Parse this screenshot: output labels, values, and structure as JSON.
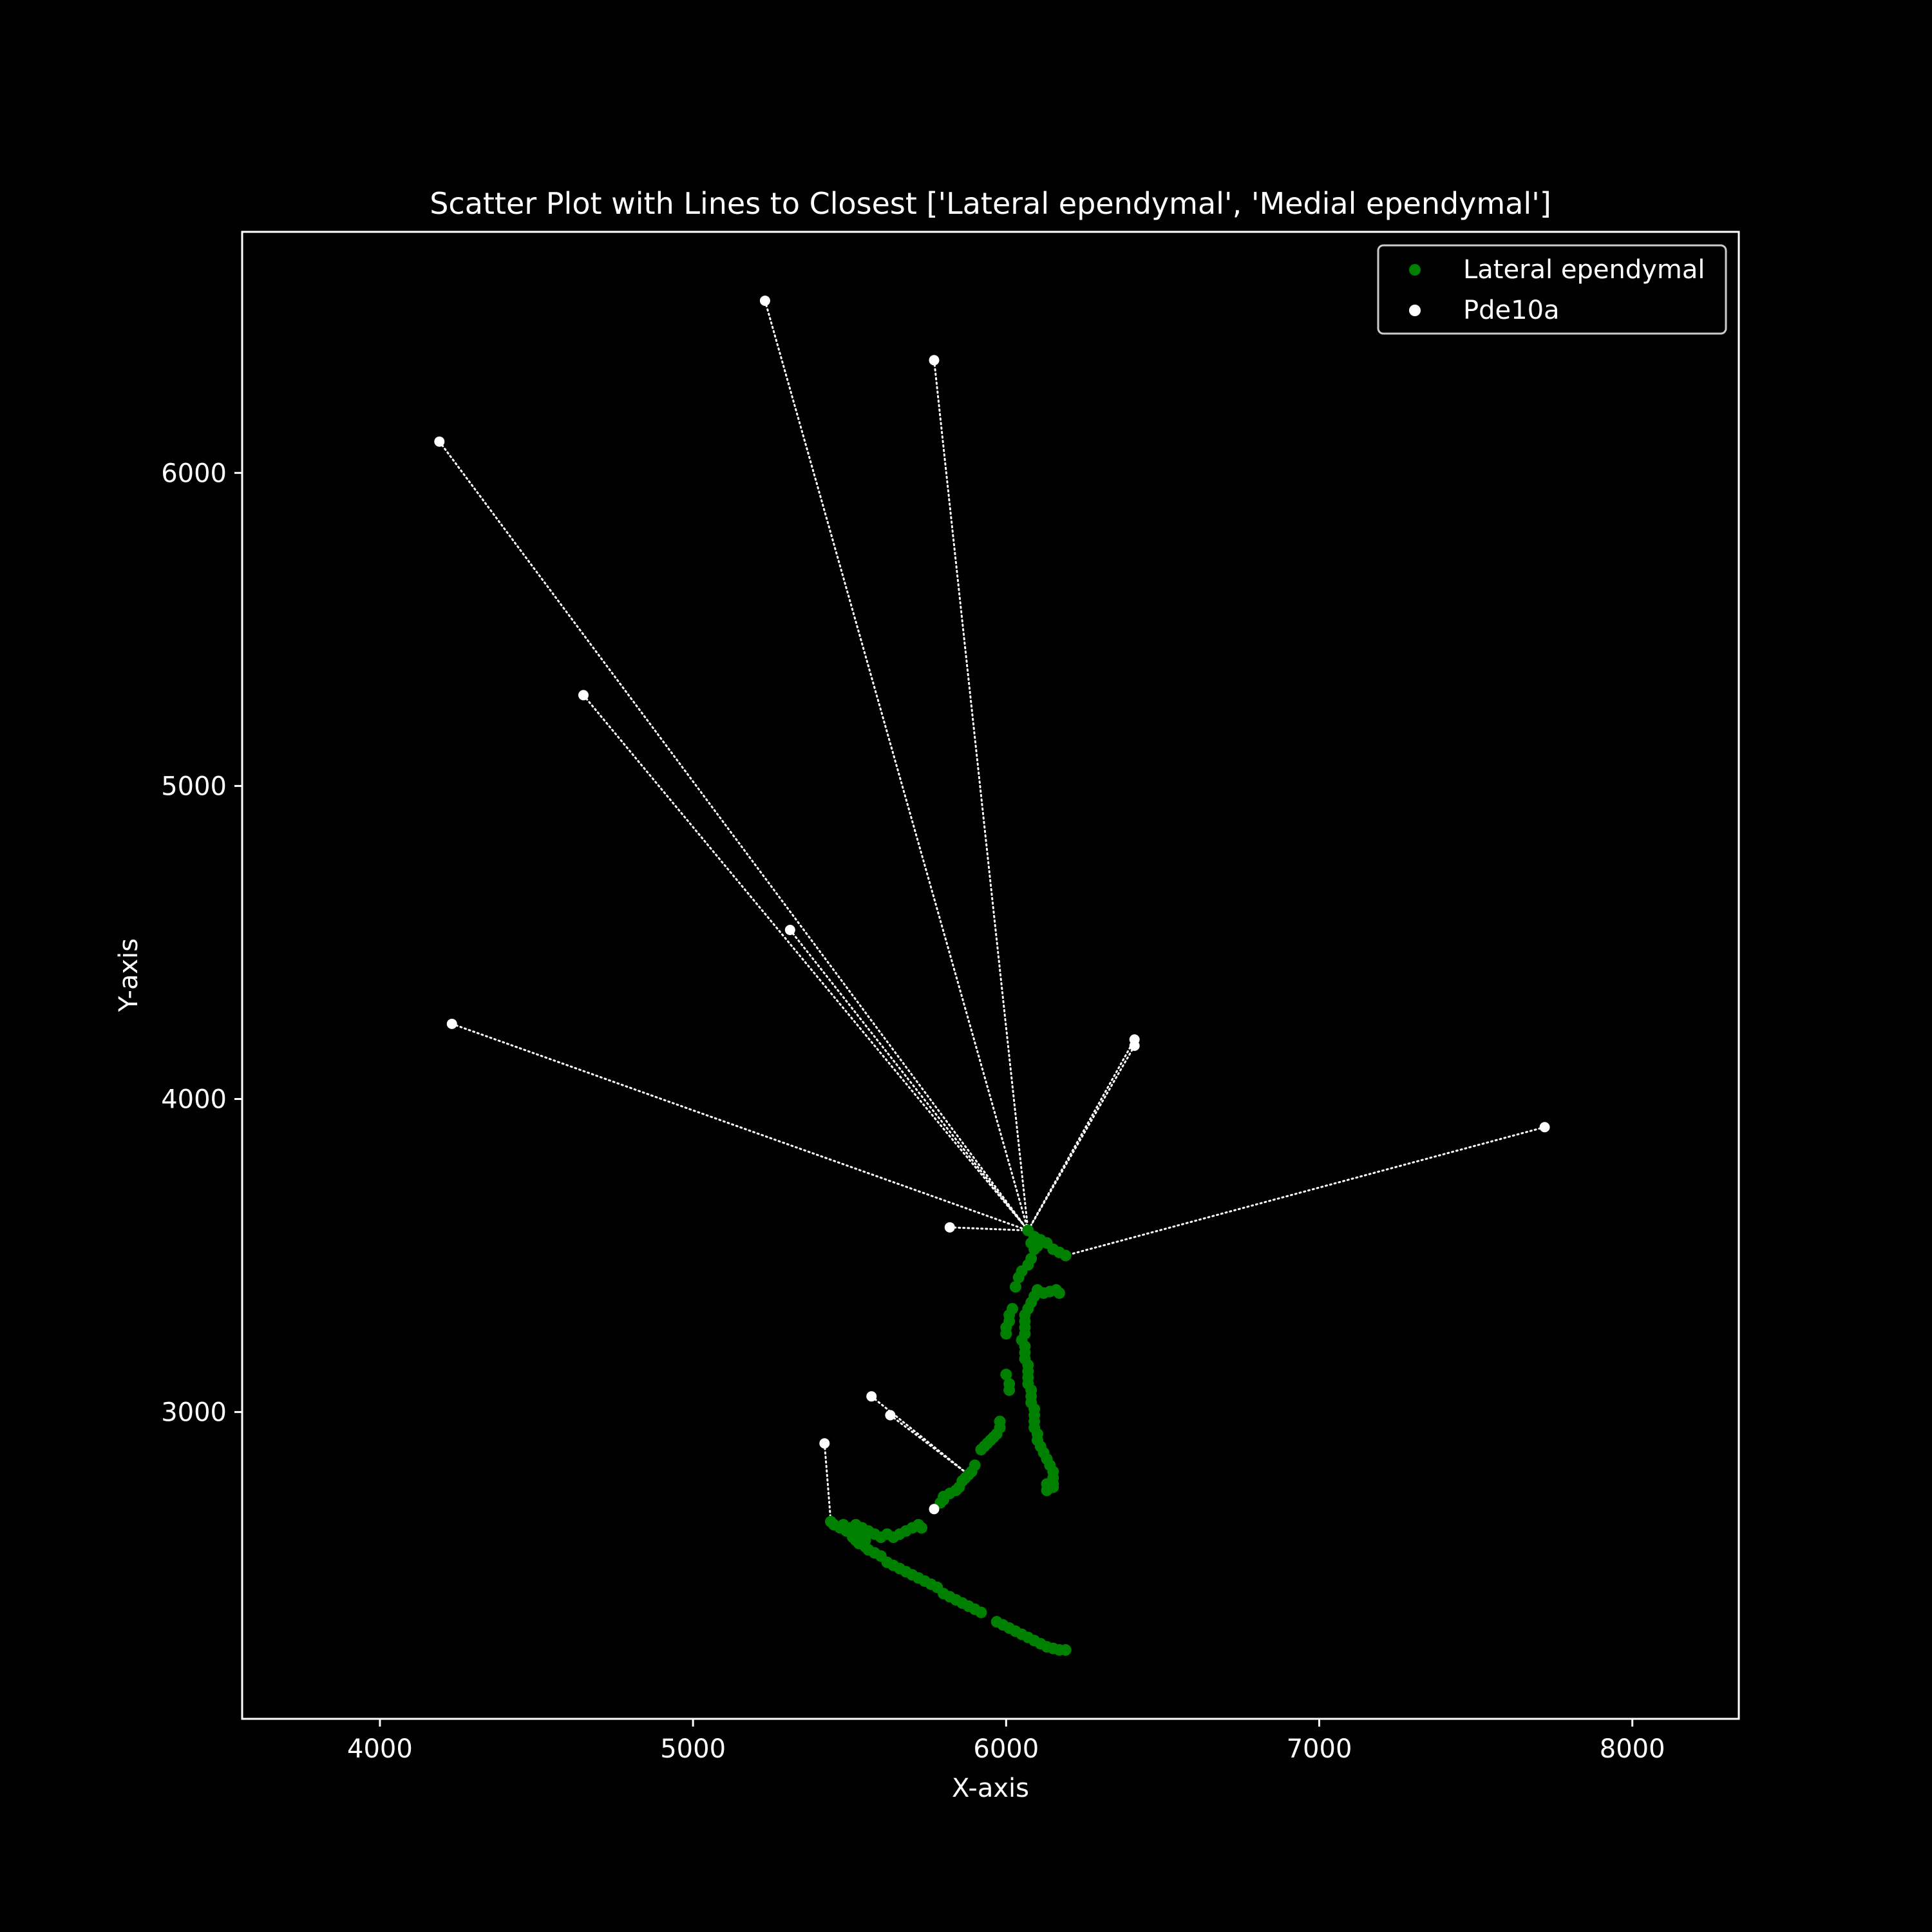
{
  "chart_data": {
    "type": "scatter",
    "title": "Scatter Plot with Lines to Closest ['Lateral ependymal', 'Medial ependymal']",
    "xlabel": "X-axis",
    "ylabel": "Y-axis",
    "xlim": [
      3560,
      8340
    ],
    "ylim": [
      2020,
      6770
    ],
    "xticks": [
      4000,
      5000,
      6000,
      7000,
      8000
    ],
    "yticks": [
      3000,
      4000,
      5000,
      6000
    ],
    "grid": false,
    "legend_position": "top-right",
    "colors": {
      "background": "#000000",
      "foreground": "#ffffff",
      "lateral_ependymal": "#008000",
      "pde10a": "#ffffff"
    },
    "series": [
      {
        "name": "Lateral ependymal",
        "color": "#008000",
        "points": [
          [
            6070,
            3580
          ],
          [
            6090,
            3560
          ],
          [
            6110,
            3550
          ],
          [
            6080,
            3540
          ],
          [
            6100,
            3530
          ],
          [
            6130,
            3540
          ],
          [
            6150,
            3520
          ],
          [
            6170,
            3510
          ],
          [
            6190,
            3500
          ],
          [
            6090,
            3520
          ],
          [
            6080,
            3490
          ],
          [
            6070,
            3470
          ],
          [
            6050,
            3450
          ],
          [
            6040,
            3430
          ],
          [
            6030,
            3400
          ],
          [
            6100,
            3390
          ],
          [
            6120,
            3380
          ],
          [
            6140,
            3385
          ],
          [
            6160,
            3390
          ],
          [
            6170,
            3380
          ],
          [
            6090,
            3370
          ],
          [
            6080,
            3350
          ],
          [
            6070,
            3330
          ],
          [
            6020,
            3330
          ],
          [
            6010,
            3310
          ],
          [
            6010,
            3290
          ],
          [
            6000,
            3270
          ],
          [
            6000,
            3250
          ],
          [
            6060,
            3310
          ],
          [
            6060,
            3290
          ],
          [
            6060,
            3270
          ],
          [
            6060,
            3250
          ],
          [
            6050,
            3230
          ],
          [
            6060,
            3210
          ],
          [
            6060,
            3190
          ],
          [
            6060,
            3170
          ],
          [
            6070,
            3150
          ],
          [
            6070,
            3130
          ],
          [
            6070,
            3110
          ],
          [
            6000,
            3120
          ],
          [
            6010,
            3090
          ],
          [
            6010,
            3070
          ],
          [
            6070,
            3090
          ],
          [
            6080,
            3070
          ],
          [
            6080,
            3050
          ],
          [
            6080,
            3030
          ],
          [
            6090,
            3010
          ],
          [
            6090,
            2990
          ],
          [
            6090,
            2970
          ],
          [
            6090,
            2950
          ],
          [
            6100,
            2930
          ],
          [
            6100,
            2910
          ],
          [
            6110,
            2890
          ],
          [
            6120,
            2870
          ],
          [
            6130,
            2850
          ],
          [
            6140,
            2830
          ],
          [
            6150,
            2810
          ],
          [
            6150,
            2790
          ],
          [
            6150,
            2770
          ],
          [
            6140,
            2760
          ],
          [
            6130,
            2770
          ],
          [
            6130,
            2750
          ],
          [
            6150,
            2760
          ],
          [
            5980,
            2970
          ],
          [
            5980,
            2950
          ],
          [
            5970,
            2930
          ],
          [
            5960,
            2920
          ],
          [
            5950,
            2910
          ],
          [
            5940,
            2900
          ],
          [
            5930,
            2890
          ],
          [
            5920,
            2880
          ],
          [
            5900,
            2830
          ],
          [
            5890,
            2810
          ],
          [
            5880,
            2800
          ],
          [
            5870,
            2790
          ],
          [
            5860,
            2780
          ],
          [
            5850,
            2760
          ],
          [
            5840,
            2750
          ],
          [
            5820,
            2740
          ],
          [
            5800,
            2720
          ],
          [
            5790,
            2710
          ],
          [
            5800,
            2730
          ],
          [
            5440,
            2650
          ],
          [
            5450,
            2640
          ],
          [
            5470,
            2630
          ],
          [
            5480,
            2640
          ],
          [
            5490,
            2620
          ],
          [
            5500,
            2630
          ],
          [
            5520,
            2640
          ],
          [
            5530,
            2620
          ],
          [
            5540,
            2630
          ],
          [
            5550,
            2610
          ],
          [
            5560,
            2620
          ],
          [
            5580,
            2610
          ],
          [
            5600,
            2600
          ],
          [
            5620,
            2610
          ],
          [
            5640,
            2600
          ],
          [
            5660,
            2610
          ],
          [
            5680,
            2620
          ],
          [
            5700,
            2630
          ],
          [
            5720,
            2640
          ],
          [
            5730,
            2630
          ],
          [
            5510,
            2600
          ],
          [
            5520,
            2590
          ],
          [
            5530,
            2580
          ],
          [
            5550,
            2570
          ],
          [
            5560,
            2560
          ],
          [
            5580,
            2550
          ],
          [
            5600,
            2540
          ],
          [
            5620,
            2520
          ],
          [
            5640,
            2510
          ],
          [
            5660,
            2500
          ],
          [
            5680,
            2490
          ],
          [
            5700,
            2480
          ],
          [
            5720,
            2470
          ],
          [
            5740,
            2460
          ],
          [
            5760,
            2450
          ],
          [
            5780,
            2440
          ],
          [
            5800,
            2420
          ],
          [
            5820,
            2410
          ],
          [
            5840,
            2400
          ],
          [
            5860,
            2390
          ],
          [
            5880,
            2380
          ],
          [
            5900,
            2370
          ],
          [
            5920,
            2360
          ],
          [
            5970,
            2330
          ],
          [
            5990,
            2320
          ],
          [
            6010,
            2310
          ],
          [
            6030,
            2300
          ],
          [
            6050,
            2290
          ],
          [
            6070,
            2280
          ],
          [
            6090,
            2270
          ],
          [
            6110,
            2260
          ],
          [
            6130,
            2250
          ],
          [
            6150,
            2245
          ],
          [
            6170,
            2240
          ],
          [
            6190,
            2240
          ],
          [
            5530,
            2610
          ],
          [
            5550,
            2590
          ],
          [
            5510,
            2620
          ]
        ]
      },
      {
        "name": "Pde10a",
        "color": "#ffffff",
        "points": [
          [
            5230,
            6550
          ],
          [
            5770,
            6360
          ],
          [
            4190,
            6100
          ],
          [
            4650,
            5290
          ],
          [
            5310,
            4540
          ],
          [
            4230,
            4240
          ],
          [
            6410,
            4190
          ],
          [
            6410,
            4170
          ],
          [
            7720,
            3910
          ],
          [
            5820,
            3590
          ],
          [
            5570,
            3050
          ],
          [
            5630,
            2990
          ],
          [
            5420,
            2900
          ],
          [
            5770,
            2690
          ]
        ]
      }
    ],
    "connections": [
      {
        "from": [
          5230,
          6550
        ],
        "to": [
          6070,
          3580
        ]
      },
      {
        "from": [
          5770,
          6360
        ],
        "to": [
          6070,
          3580
        ]
      },
      {
        "from": [
          4190,
          6100
        ],
        "to": [
          6070,
          3580
        ]
      },
      {
        "from": [
          4650,
          5290
        ],
        "to": [
          6070,
          3580
        ]
      },
      {
        "from": [
          5310,
          4540
        ],
        "to": [
          6070,
          3580
        ]
      },
      {
        "from": [
          4230,
          4240
        ],
        "to": [
          6070,
          3580
        ]
      },
      {
        "from": [
          6410,
          4190
        ],
        "to": [
          6070,
          3580
        ]
      },
      {
        "from": [
          6410,
          4170
        ],
        "to": [
          6070,
          3580
        ]
      },
      {
        "from": [
          7720,
          3910
        ],
        "to": [
          6190,
          3500
        ]
      },
      {
        "from": [
          5820,
          3590
        ],
        "to": [
          6070,
          3580
        ]
      },
      {
        "from": [
          5570,
          3050
        ],
        "to": [
          5880,
          2800
        ]
      },
      {
        "from": [
          5630,
          2990
        ],
        "to": [
          5880,
          2800
        ]
      },
      {
        "from": [
          5420,
          2900
        ],
        "to": [
          5440,
          2650
        ]
      },
      {
        "from": [
          5770,
          2690
        ],
        "to": [
          5790,
          2710
        ]
      }
    ]
  }
}
